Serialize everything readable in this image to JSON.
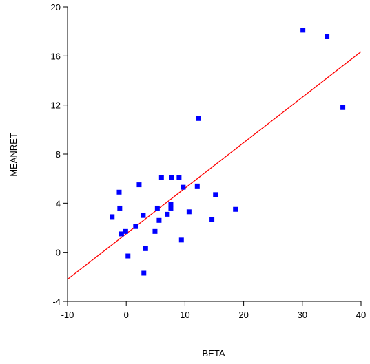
{
  "chart_data": {
    "type": "scatter",
    "x_label": "BETA",
    "y_label": "MEANRET",
    "xlim": [
      -10,
      40
    ],
    "xticks": [
      -10,
      0,
      10,
      20,
      30,
      40
    ],
    "ylim": [
      -4,
      20
    ],
    "yticks": [
      -4,
      0,
      4,
      8,
      12,
      16,
      20
    ],
    "grid": false,
    "series": [
      {
        "color": "#0000ff",
        "x": [
          30.1,
          34.2,
          36.9,
          12.3,
          6.0,
          7.7,
          9.0,
          2.2,
          12.1,
          9.7,
          -1.2,
          15.2,
          7.6,
          -1.1,
          5.3,
          7.6,
          10.7,
          18.6,
          -2.4,
          2.9,
          7.0,
          5.6,
          14.6,
          1.6,
          -0.1,
          -0.8,
          4.9,
          3.3,
          9.4,
          0.3,
          3.0
        ],
        "values": [
          18.1,
          17.6,
          11.8,
          10.9,
          6.1,
          6.1,
          6.1,
          5.5,
          5.4,
          5.3,
          4.9,
          4.7,
          3.9,
          3.6,
          3.6,
          3.6,
          3.3,
          3.5,
          2.9,
          3.0,
          3.1,
          2.6,
          2.7,
          2.1,
          1.7,
          1.5,
          1.7,
          0.3,
          1.0,
          -0.3,
          -1.7
        ]
      }
    ],
    "fit_line": {
      "color": "#ff0000",
      "x": [
        -10,
        40
      ],
      "values": [
        -2.2,
        16.35
      ]
    }
  }
}
